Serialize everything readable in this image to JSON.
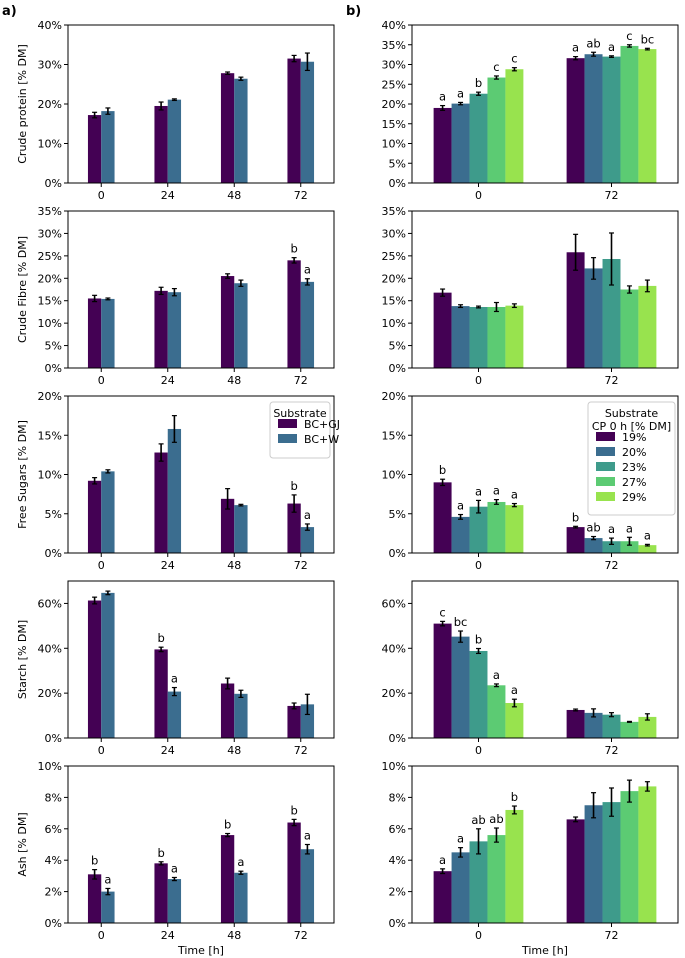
{
  "figure": {
    "panel_labels": [
      "a)",
      "b)"
    ],
    "xlabel": "Time [h]",
    "legend_a": {
      "title": "Substrate",
      "entries": [
        "BC+GJ",
        "BC+W"
      ]
    },
    "legend_b": {
      "title": [
        "Substrate",
        "CP 0 h [% DM]"
      ],
      "entries": [
        "19%",
        "20%",
        "23%",
        "27%",
        "29%"
      ]
    }
  },
  "colors": {
    "a": [
      "#440154",
      "#3b6d8f"
    ],
    "b": [
      "#440154",
      "#3b6d8f",
      "#3e9b8b",
      "#5ccb73",
      "#98e34e"
    ]
  },
  "chart_data": [
    {
      "panel": "a",
      "type": "bar",
      "title": "",
      "ylabel": "Crude protein [% DM]",
      "ylim": [
        0,
        40
      ],
      "yticks": [
        0,
        10,
        20,
        30,
        40
      ],
      "tick_suffix": "%",
      "categories": [
        "0",
        "24",
        "48",
        "72"
      ],
      "series": [
        {
          "name": "BC+GJ",
          "values": [
            17.2,
            19.5,
            27.8,
            31.5
          ],
          "errors": [
            0.7,
            1.0,
            0.3,
            0.8
          ],
          "labels": [
            "",
            "",
            "",
            ""
          ]
        },
        {
          "name": "BC+W",
          "values": [
            18.2,
            21.1,
            26.4,
            30.7
          ],
          "errors": [
            0.8,
            0.2,
            0.4,
            2.2
          ],
          "labels": [
            "",
            "",
            "",
            ""
          ]
        }
      ]
    },
    {
      "panel": "b",
      "type": "bar",
      "title": "",
      "ylabel": "",
      "ylim": [
        0,
        40
      ],
      "yticks": [
        0,
        5,
        10,
        15,
        20,
        25,
        30,
        35,
        40
      ],
      "tick_suffix": "%",
      "categories": [
        "0",
        "72"
      ],
      "series": [
        {
          "name": "19%",
          "values": [
            19.0,
            31.6
          ],
          "errors": [
            0.6,
            0.4
          ],
          "labels": [
            "a",
            "a"
          ]
        },
        {
          "name": "20%",
          "values": [
            20.1,
            32.6
          ],
          "errors": [
            0.3,
            0.5
          ],
          "labels": [
            "a",
            "ab"
          ]
        },
        {
          "name": "23%",
          "values": [
            22.6,
            32.0
          ],
          "errors": [
            0.4,
            0.2
          ],
          "labels": [
            "b",
            "a"
          ]
        },
        {
          "name": "27%",
          "values": [
            26.7,
            34.7
          ],
          "errors": [
            0.4,
            0.3
          ],
          "labels": [
            "c",
            "c"
          ]
        },
        {
          "name": "29%",
          "values": [
            28.8,
            33.9
          ],
          "errors": [
            0.4,
            0.2
          ],
          "labels": [
            "c",
            "bc"
          ]
        }
      ]
    },
    {
      "panel": "a",
      "type": "bar",
      "title": "",
      "ylabel": "Crude Fibre [% DM]",
      "ylim": [
        0,
        35
      ],
      "yticks": [
        0,
        5,
        10,
        15,
        20,
        25,
        30,
        35
      ],
      "tick_suffix": "%",
      "categories": [
        "0",
        "24",
        "48",
        "72"
      ],
      "series": [
        {
          "name": "BC+GJ",
          "values": [
            15.5,
            17.2,
            20.5,
            24.0
          ],
          "errors": [
            0.7,
            0.8,
            0.5,
            0.6
          ],
          "labels": [
            "",
            "",
            "",
            "b"
          ]
        },
        {
          "name": "BC+W",
          "values": [
            15.4,
            16.9,
            18.9,
            19.2
          ],
          "errors": [
            0.2,
            0.8,
            0.7,
            0.7
          ],
          "labels": [
            "",
            "",
            "",
            "a"
          ]
        }
      ]
    },
    {
      "panel": "b",
      "type": "bar",
      "title": "",
      "ylabel": "",
      "ylim": [
        0,
        35
      ],
      "yticks": [
        0,
        5,
        10,
        15,
        20,
        25,
        30,
        35
      ],
      "tick_suffix": "%",
      "categories": [
        "0",
        "72"
      ],
      "series": [
        {
          "name": "19%",
          "values": [
            16.8,
            25.8
          ],
          "errors": [
            0.8,
            4.0
          ],
          "labels": [
            "",
            ""
          ]
        },
        {
          "name": "20%",
          "values": [
            13.8,
            22.2
          ],
          "errors": [
            0.3,
            2.4
          ],
          "labels": [
            "",
            ""
          ]
        },
        {
          "name": "23%",
          "values": [
            13.6,
            24.3
          ],
          "errors": [
            0.2,
            5.8
          ],
          "labels": [
            "",
            ""
          ]
        },
        {
          "name": "27%",
          "values": [
            13.6,
            17.5
          ],
          "errors": [
            1.0,
            0.8
          ],
          "labels": [
            "",
            ""
          ]
        },
        {
          "name": "29%",
          "values": [
            13.9,
            18.3
          ],
          "errors": [
            0.4,
            1.3
          ],
          "labels": [
            "",
            ""
          ]
        }
      ]
    },
    {
      "panel": "a",
      "type": "bar",
      "title": "",
      "ylabel": "Free Sugars [% DM]",
      "ylim": [
        0,
        20
      ],
      "yticks": [
        0,
        5,
        10,
        15,
        20
      ],
      "tick_suffix": "%",
      "categories": [
        "0",
        "24",
        "48",
        "72"
      ],
      "series": [
        {
          "name": "BC+GJ",
          "values": [
            9.2,
            12.8,
            6.9,
            6.3
          ],
          "errors": [
            0.4,
            1.1,
            1.3,
            1.1
          ],
          "labels": [
            "",
            "",
            "",
            "b"
          ]
        },
        {
          "name": "BC+W",
          "values": [
            10.4,
            15.8,
            6.1,
            3.3
          ],
          "errors": [
            0.2,
            1.7,
            0.1,
            0.4
          ],
          "labels": [
            "",
            "",
            "",
            "a"
          ]
        }
      ]
    },
    {
      "panel": "b",
      "type": "bar",
      "title": "",
      "ylabel": "",
      "ylim": [
        0,
        20
      ],
      "yticks": [
        0,
        5,
        10,
        15,
        20
      ],
      "tick_suffix": "%",
      "categories": [
        "0",
        "72"
      ],
      "series": [
        {
          "name": "19%",
          "values": [
            9.0,
            3.3
          ],
          "errors": [
            0.4,
            0.1
          ],
          "labels": [
            "b",
            "b"
          ]
        },
        {
          "name": "20%",
          "values": [
            4.6,
            1.9
          ],
          "errors": [
            0.3,
            0.2
          ],
          "labels": [
            "a",
            "ab"
          ]
        },
        {
          "name": "23%",
          "values": [
            5.9,
            1.5
          ],
          "errors": [
            0.8,
            0.4
          ],
          "labels": [
            "a",
            "a"
          ]
        },
        {
          "name": "27%",
          "values": [
            6.5,
            1.5
          ],
          "errors": [
            0.3,
            0.5
          ],
          "labels": [
            "a",
            "a"
          ]
        },
        {
          "name": "29%",
          "values": [
            6.1,
            1.0
          ],
          "errors": [
            0.2,
            0.1
          ],
          "labels": [
            "a",
            "a"
          ]
        }
      ]
    },
    {
      "panel": "a",
      "type": "bar",
      "title": "",
      "ylabel": "Starch [% DM]",
      "ylim": [
        0,
        70
      ],
      "yticks": [
        0,
        20,
        40,
        60
      ],
      "tick_suffix": "%",
      "categories": [
        "0",
        "24",
        "48",
        "72"
      ],
      "series": [
        {
          "name": "BC+GJ",
          "values": [
            61.3,
            39.5,
            24.3,
            14.3
          ],
          "errors": [
            1.5,
            1.0,
            2.4,
            1.3
          ],
          "labels": [
            "",
            "b",
            "",
            ""
          ]
        },
        {
          "name": "BC+W",
          "values": [
            64.7,
            20.7,
            19.7,
            15.0
          ],
          "errors": [
            0.8,
            1.8,
            1.6,
            4.5
          ],
          "labels": [
            "",
            "a",
            "",
            ""
          ]
        }
      ]
    },
    {
      "panel": "b",
      "type": "bar",
      "title": "",
      "ylabel": "",
      "ylim": [
        0,
        70
      ],
      "yticks": [
        0,
        20,
        40,
        60
      ],
      "tick_suffix": "%",
      "categories": [
        "0",
        "72"
      ],
      "series": [
        {
          "name": "19%",
          "values": [
            51.0,
            12.5
          ],
          "errors": [
            1.0,
            0.4
          ],
          "labels": [
            "c",
            ""
          ]
        },
        {
          "name": "20%",
          "values": [
            45.2,
            11.2
          ],
          "errors": [
            2.5,
            1.8
          ],
          "labels": [
            "bc",
            ""
          ]
        },
        {
          "name": "23%",
          "values": [
            38.8,
            10.4
          ],
          "errors": [
            1.1,
            0.9
          ],
          "labels": [
            "b",
            ""
          ]
        },
        {
          "name": "27%",
          "values": [
            23.5,
            7.2
          ],
          "errors": [
            0.6,
            0.2
          ],
          "labels": [
            "a",
            ""
          ]
        },
        {
          "name": "29%",
          "values": [
            15.6,
            9.4
          ],
          "errors": [
            1.7,
            1.4
          ],
          "labels": [
            "a",
            ""
          ]
        }
      ]
    },
    {
      "panel": "a",
      "type": "bar",
      "title": "",
      "ylabel": "Ash [% DM]",
      "ylim": [
        0,
        10
      ],
      "yticks": [
        0,
        2,
        4,
        6,
        8,
        10
      ],
      "tick_suffix": "%",
      "categories": [
        "0",
        "24",
        "48",
        "72"
      ],
      "series": [
        {
          "name": "BC+GJ",
          "values": [
            3.1,
            3.8,
            5.6,
            6.4
          ],
          "errors": [
            0.3,
            0.1,
            0.1,
            0.2
          ],
          "labels": [
            "b",
            "b",
            "b",
            "b"
          ]
        },
        {
          "name": "BC+W",
          "values": [
            2.0,
            2.8,
            3.2,
            4.7
          ],
          "errors": [
            0.2,
            0.1,
            0.1,
            0.3
          ],
          "labels": [
            "a",
            "a",
            "a",
            "a"
          ]
        }
      ]
    },
    {
      "panel": "b",
      "type": "bar",
      "title": "",
      "ylabel": "",
      "ylim": [
        0,
        10
      ],
      "yticks": [
        0,
        2,
        4,
        6,
        8,
        10
      ],
      "tick_suffix": "%",
      "categories": [
        "0",
        "72"
      ],
      "series": [
        {
          "name": "19%",
          "values": [
            3.3,
            6.6
          ],
          "errors": [
            0.15,
            0.15
          ],
          "labels": [
            "a",
            ""
          ]
        },
        {
          "name": "20%",
          "values": [
            4.5,
            7.5
          ],
          "errors": [
            0.3,
            0.8
          ],
          "labels": [
            "a",
            ""
          ]
        },
        {
          "name": "23%",
          "values": [
            5.2,
            7.7
          ],
          "errors": [
            0.8,
            0.9
          ],
          "labels": [
            "ab",
            ""
          ]
        },
        {
          "name": "27%",
          "values": [
            5.6,
            8.4
          ],
          "errors": [
            0.45,
            0.7
          ],
          "labels": [
            "ab",
            ""
          ]
        },
        {
          "name": "29%",
          "values": [
            7.2,
            8.7
          ],
          "errors": [
            0.25,
            0.3
          ],
          "labels": [
            "b",
            ""
          ]
        }
      ]
    }
  ]
}
